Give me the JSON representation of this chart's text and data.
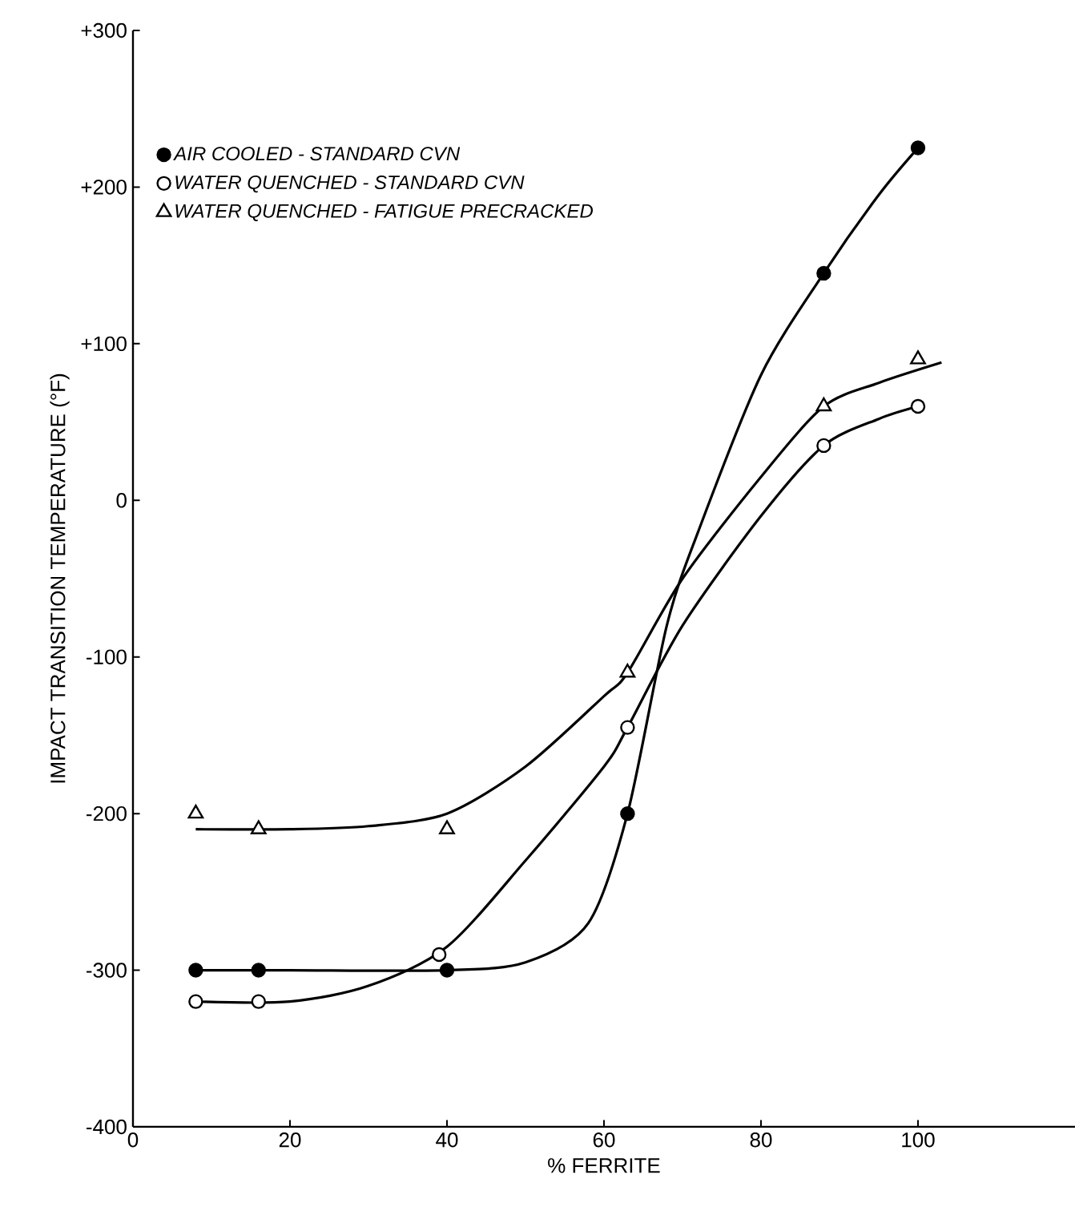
{
  "chart_data": {
    "type": "scatter",
    "xlabel": "% FERRITE",
    "ylabel": "IMPACT TRANSITION TEMPERATURE (°F)",
    "xlim": [
      0,
      120
    ],
    "xticks": [
      0,
      20,
      40,
      60,
      80,
      100
    ],
    "ylim": [
      -400,
      300
    ],
    "yticks": [
      {
        "value": 300,
        "label": "+300"
      },
      {
        "value": 200,
        "label": "+200"
      },
      {
        "value": 100,
        "label": "+100"
      },
      0,
      -100,
      -200,
      -300,
      -400
    ],
    "legend": "top left",
    "grid": false,
    "series": [
      {
        "name": "AIR COOLED - STANDARD CVN",
        "color": "#000000",
        "marker": "circle",
        "x": [
          8,
          16,
          40,
          63,
          88,
          100
        ],
        "values": [
          -300,
          -300,
          -300,
          -200,
          145,
          225
        ]
      },
      {
        "name": "WATER QUENCHED - STANDARD CVN",
        "color": "#ffffff",
        "marker": "circle",
        "x": [
          8,
          16,
          39,
          63,
          88,
          100
        ],
        "values": [
          -320,
          -320,
          -290,
          -145,
          35,
          60
        ]
      },
      {
        "name": "WATER QUENCHED - FATIGUE PRECRACKED",
        "color": "#ffffff",
        "marker": "triangle",
        "x": [
          8,
          16,
          40,
          63,
          88,
          100
        ],
        "values": [
          -200,
          -210,
          -210,
          -110,
          60,
          90
        ]
      },
      {
        "type": "line",
        "color": "#000000",
        "marker": "none",
        "x": [
          8,
          20,
          40,
          50,
          58,
          63,
          68,
          72,
          80,
          88,
          95,
          100
        ],
        "values": [
          -300,
          -300,
          -300,
          -295,
          -270,
          -200,
          -80,
          -20,
          80,
          145,
          195,
          225
        ]
      },
      {
        "type": "line",
        "color": "#000000",
        "marker": "none",
        "x": [
          8,
          20,
          30,
          40,
          50,
          60,
          63,
          70,
          80,
          88,
          95,
          100
        ],
        "values": [
          -320,
          -320,
          -310,
          -285,
          -230,
          -170,
          -145,
          -80,
          -10,
          35,
          52,
          60
        ]
      },
      {
        "type": "line",
        "color": "#000000",
        "marker": "none",
        "x": [
          8,
          20,
          30,
          40,
          50,
          60,
          63,
          70,
          80,
          88,
          95,
          103
        ],
        "values": [
          -210,
          -210,
          -208,
          -200,
          -170,
          -125,
          -110,
          -50,
          15,
          60,
          75,
          88
        ]
      }
    ]
  }
}
